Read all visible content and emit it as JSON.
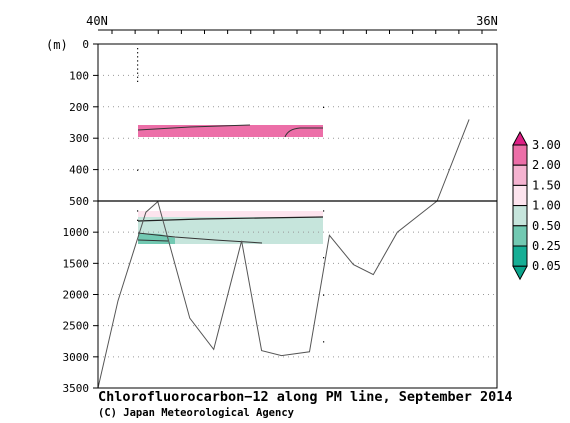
{
  "chart_data": {
    "type": "section",
    "title": "Chlorofluorocarbon−12 along PM line, September 2014",
    "credit": "(C) Japan Meteorological Agency",
    "x_top_labels": [
      "40N",
      "36N"
    ],
    "ylabel": "(m)",
    "y_ticks_upper": [
      "0",
      "100",
      "200",
      "300",
      "400",
      "500"
    ],
    "y_ticks_lower": [
      "1000",
      "1500",
      "2000",
      "2500",
      "3000",
      "3500"
    ],
    "ylim_upper": [
      0,
      500
    ],
    "ylim_lower": [
      500,
      3500
    ],
    "colorbar": {
      "levels": [
        "3.00",
        "2.00",
        "1.50",
        "1.00",
        "0.50",
        "0.25",
        "0.05"
      ],
      "colors": [
        "#de1f85",
        "#ec6fa8",
        "#f5b3d0",
        "#fde4ee",
        "#c6e5dc",
        "#72c9b2",
        "#16ae95"
      ]
    },
    "bottom_depth_m": [
      [
        0.0,
        3500
      ],
      [
        0.05,
        2100
      ],
      [
        0.12,
        680
      ],
      [
        0.15,
        510
      ],
      [
        0.23,
        2380
      ],
      [
        0.29,
        2880
      ],
      [
        0.36,
        1140
      ],
      [
        0.41,
        2900
      ],
      [
        0.46,
        2980
      ],
      [
        0.53,
        2920
      ],
      [
        0.58,
        1050
      ],
      [
        0.64,
        1520
      ],
      [
        0.69,
        1680
      ],
      [
        0.75,
        1000
      ],
      [
        0.85,
        500
      ],
      [
        0.93,
        240
      ]
    ]
  }
}
